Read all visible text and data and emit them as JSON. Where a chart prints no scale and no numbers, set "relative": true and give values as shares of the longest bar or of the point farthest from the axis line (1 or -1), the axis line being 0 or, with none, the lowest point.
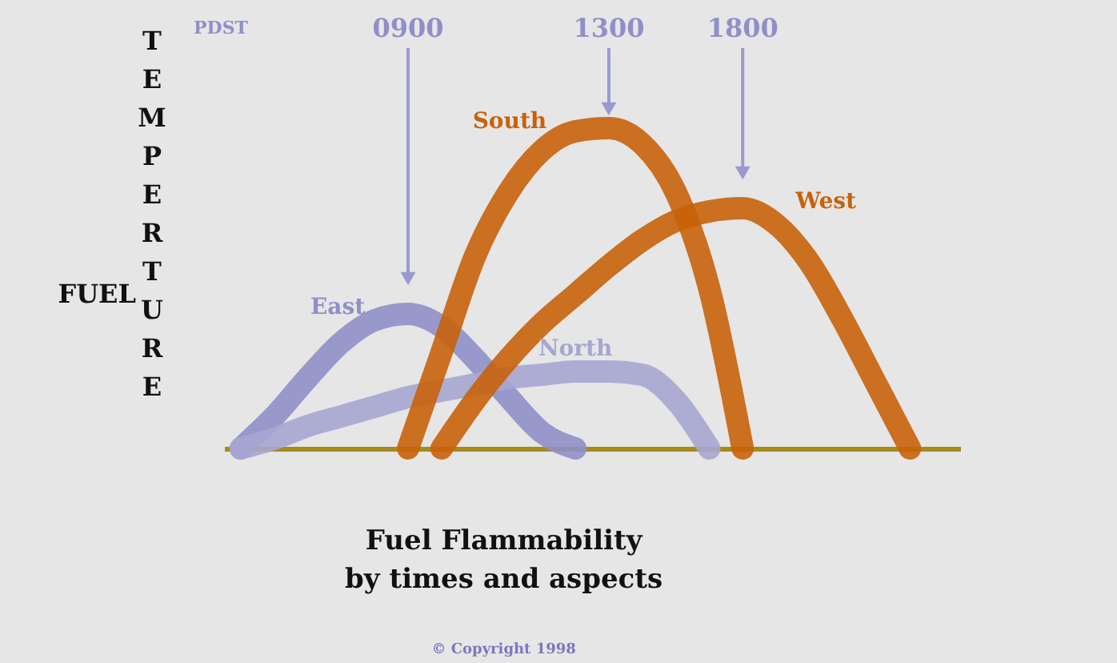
{
  "chart_data": {
    "type": "line",
    "relative": true,
    "title": "Fuel Flammability\nby times and aspects",
    "ylabel": "TEMPERTURE",
    "categories": [
      null,
      null,
      null,
      null,
      null,
      null,
      null,
      null,
      null,
      null,
      null,
      null,
      null,
      null,
      null,
      null,
      null,
      null,
      null,
      null,
      null
    ],
    "series": [
      {
        "name": "East",
        "color": "#8f8fc8",
        "values": [
          0,
          0.1,
          0.22,
          0.33,
          0.4,
          0.42,
          0.38,
          0.28,
          0.16,
          0.05,
          0,
          null,
          null,
          null,
          null,
          null,
          null,
          null,
          null,
          null,
          null
        ]
      },
      {
        "name": "North",
        "color": "#a6a6d2",
        "values": [
          0,
          0.03,
          0.07,
          0.1,
          0.13,
          0.16,
          0.18,
          0.2,
          0.22,
          0.23,
          0.24,
          0.24,
          0.23,
          0.15,
          0,
          null,
          null,
          null,
          null,
          null,
          null
        ]
      },
      {
        "name": "South",
        "color": "#c8620a",
        "values": [
          null,
          null,
          null,
          null,
          null,
          0,
          0.3,
          0.6,
          0.8,
          0.93,
          0.99,
          1.0,
          0.95,
          0.8,
          0.5,
          0,
          null,
          null,
          null,
          null,
          null
        ]
      },
      {
        "name": "West",
        "color": "#c8620a",
        "values": [
          null,
          null,
          null,
          null,
          null,
          null,
          0,
          0.15,
          0.28,
          0.39,
          0.48,
          0.57,
          0.65,
          0.71,
          0.74,
          0.75,
          0.7,
          0.58,
          0.4,
          0.2,
          0
        ]
      }
    ],
    "annotations": [
      "PDST",
      "0900",
      "1300",
      "1800",
      "FUEL",
      "© Copyright 1998"
    ],
    "grid": false,
    "marker": "none",
    "line_style": "solid"
  }
}
